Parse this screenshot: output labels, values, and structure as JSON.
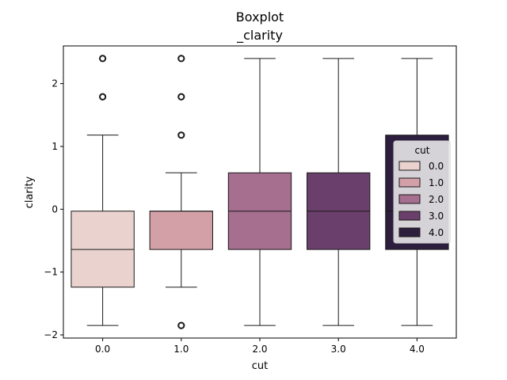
{
  "chart_data": {
    "type": "boxplot",
    "title_line1": "Boxplot",
    "title_line2": "_clarity",
    "xlabel": "cut",
    "ylabel": "clarity",
    "ylim": [
      -2.05,
      2.6
    ],
    "yticks": [
      -2,
      -1,
      0,
      1,
      2
    ],
    "ytick_labels": [
      "−2",
      "−1",
      "0",
      "1",
      "2"
    ],
    "categories": [
      "0.0",
      "1.0",
      "2.0",
      "3.0",
      "4.0"
    ],
    "boxes": [
      {
        "category": "0.0",
        "whisker_low": -1.85,
        "q1": -1.24,
        "median": -0.64,
        "q3": -0.03,
        "whisker_high": 1.18,
        "outliers": [
          1.79,
          2.4
        ],
        "color": "#ead3ce"
      },
      {
        "category": "1.0",
        "whisker_low": -1.24,
        "q1": -0.64,
        "median": -0.03,
        "q3": -0.03,
        "whisker_high": 0.58,
        "outliers": [
          -1.85,
          1.18,
          1.79,
          2.4
        ],
        "color": "#d4a0a8"
      },
      {
        "category": "2.0",
        "whisker_low": -1.85,
        "q1": -0.64,
        "median": -0.03,
        "q3": 0.58,
        "whisker_high": 2.4,
        "outliers": [],
        "color": "#a66e8f"
      },
      {
        "category": "3.0",
        "whisker_low": -1.85,
        "q1": -0.64,
        "median": -0.03,
        "q3": 0.58,
        "whisker_high": 2.4,
        "outliers": [],
        "color": "#6b3f6b"
      },
      {
        "category": "4.0",
        "whisker_low": -1.85,
        "q1": -0.64,
        "median": -0.03,
        "q3": 1.18,
        "whisker_high": 2.4,
        "outliers": [],
        "color": "#2d1e3e"
      }
    ],
    "legend": {
      "title": "cut",
      "placement": "right",
      "entries": [
        {
          "label": "0.0",
          "color": "#ead3ce"
        },
        {
          "label": "1.0",
          "color": "#d4a0a8"
        },
        {
          "label": "2.0",
          "color": "#a66e8f"
        },
        {
          "label": "3.0",
          "color": "#6b3f6b"
        },
        {
          "label": "4.0",
          "color": "#2d1e3e"
        }
      ]
    },
    "grid": false
  }
}
